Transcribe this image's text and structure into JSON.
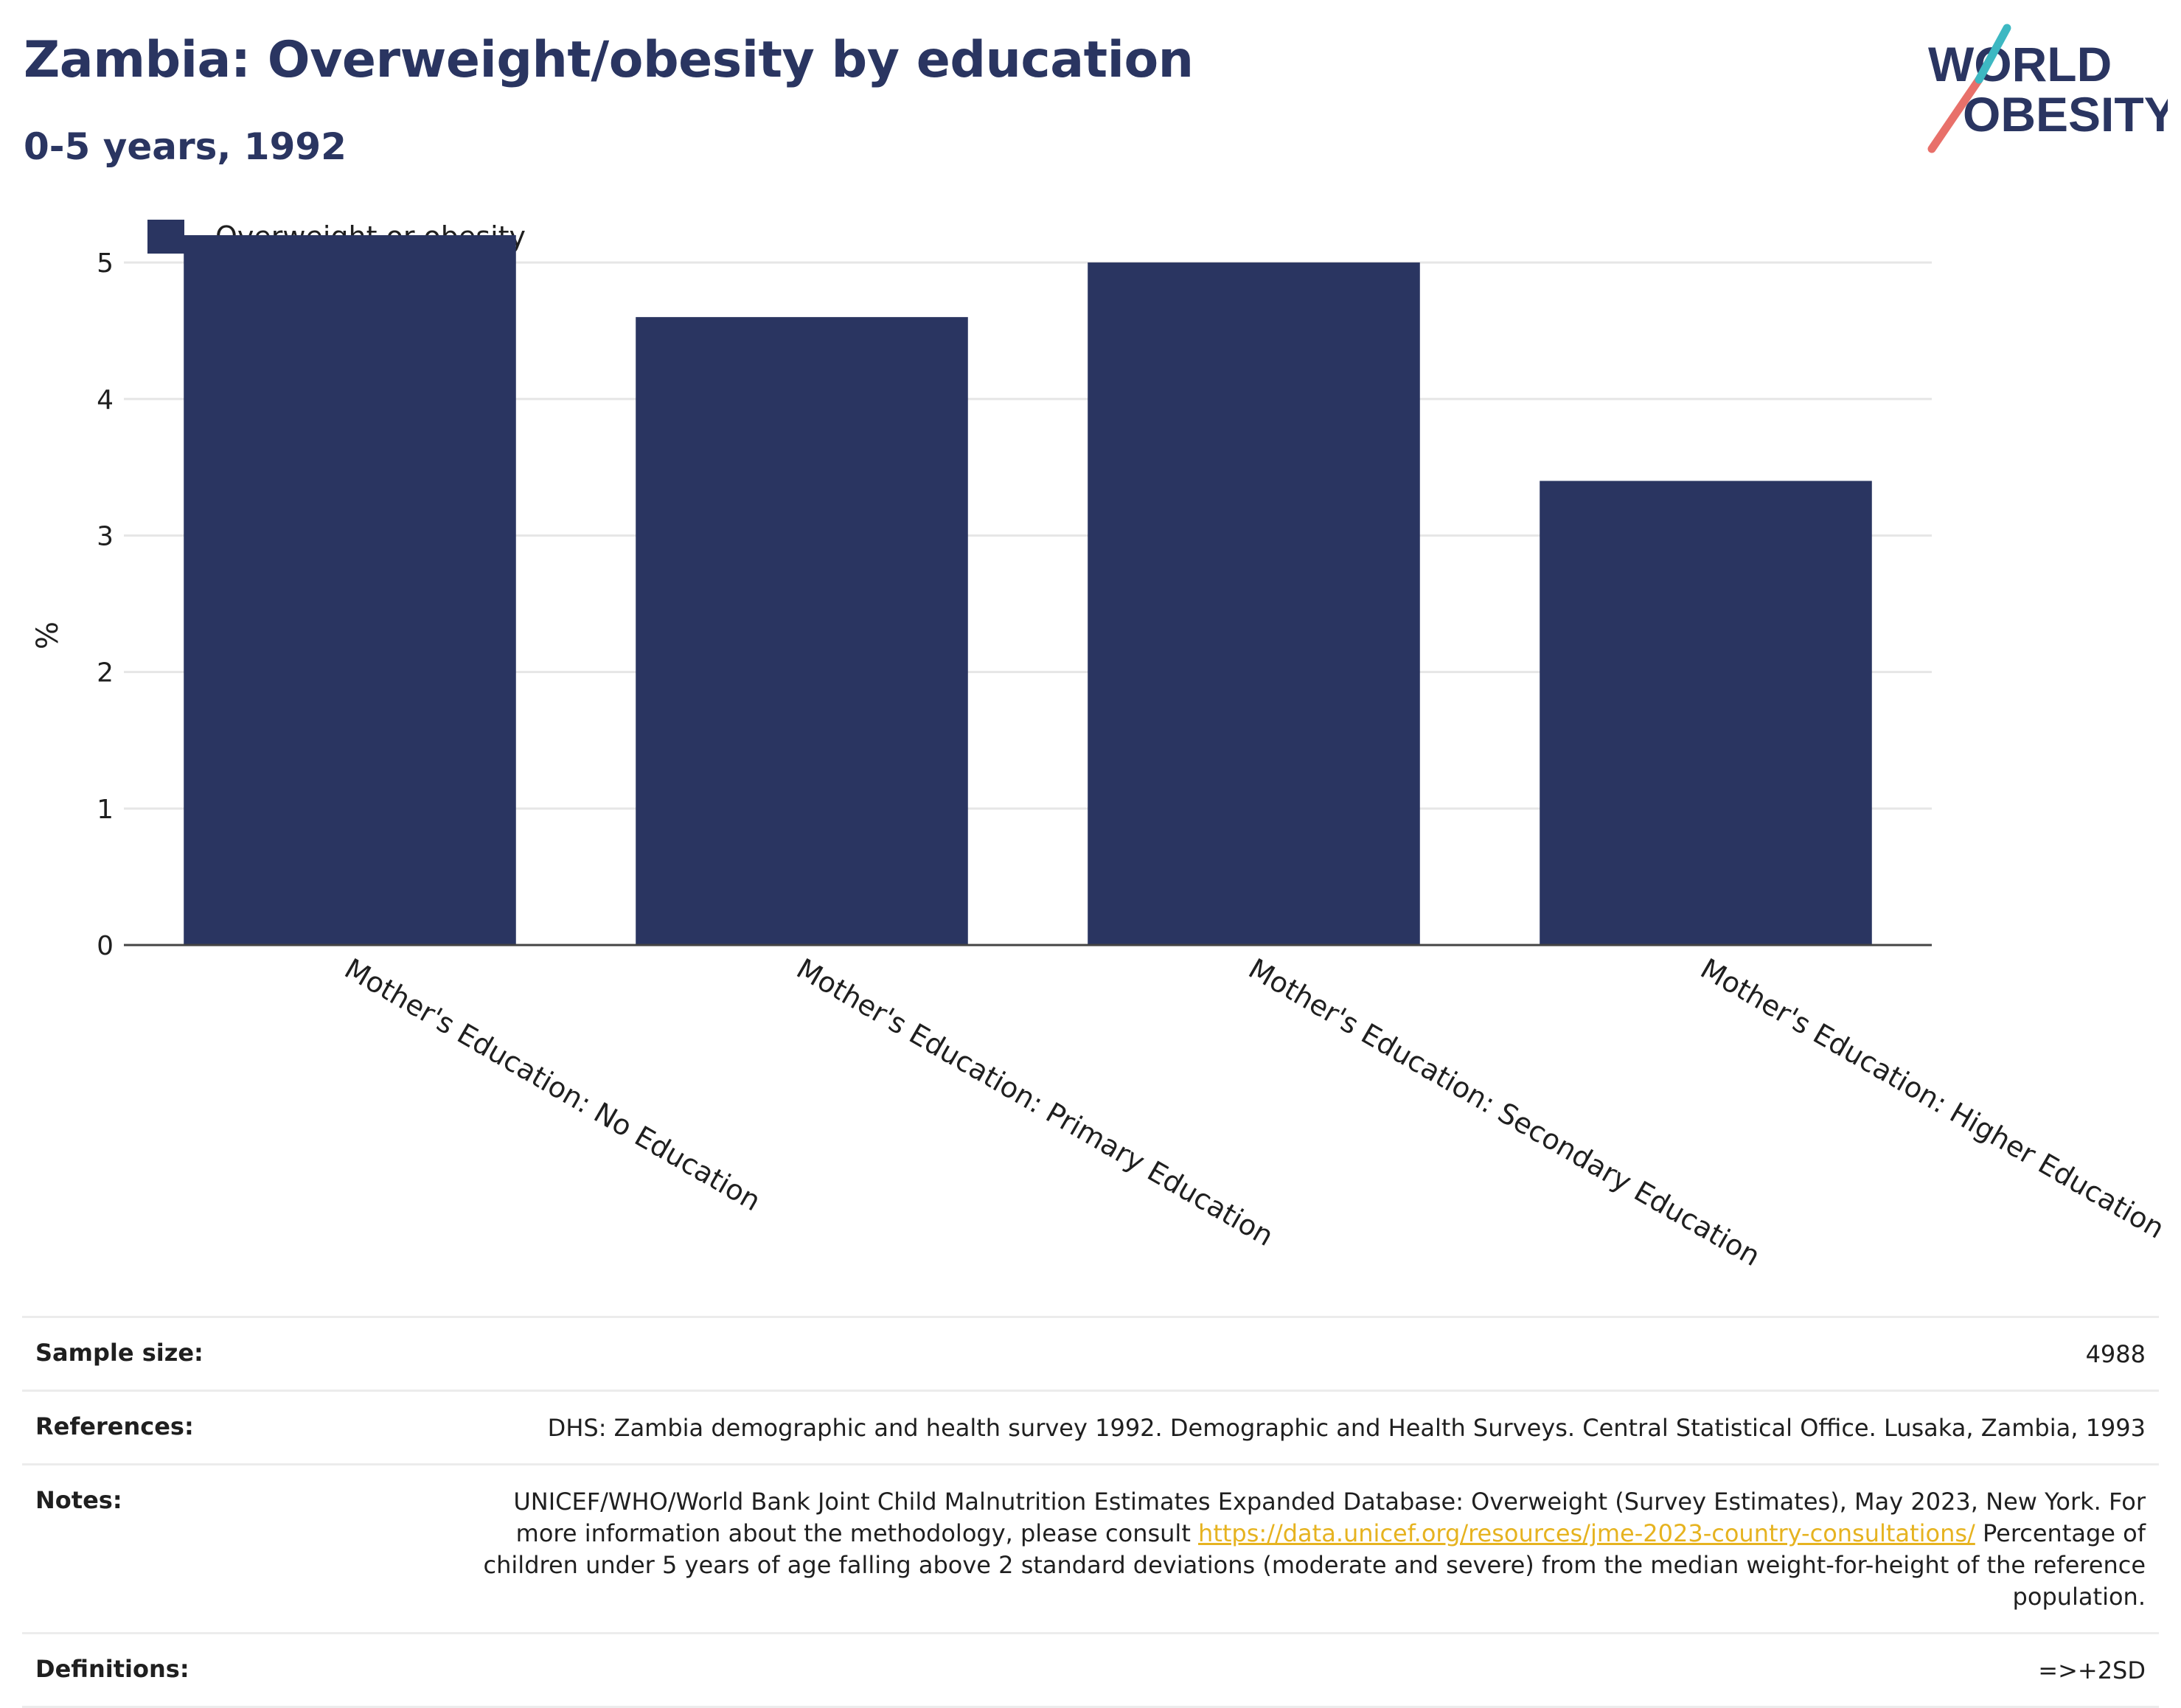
{
  "header": {
    "title": "Zambia: Overweight/obesity by education",
    "subtitle": "0-5 years, 1992"
  },
  "logo": {
    "line1": "WORLD",
    "line2": "OBESITY",
    "brand_color": "#2a3561",
    "accent_colors": [
      "#e8706a",
      "#3db8c2"
    ]
  },
  "legend": {
    "label": "Overweight or obesity",
    "color": "#2a3561"
  },
  "chart_data": {
    "type": "bar",
    "categories": [
      "Mother's Education: No Education",
      "Mother's Education: Primary Education",
      "Mother's Education: Secondary Education",
      "Mother's Education: Higher Education"
    ],
    "series": [
      {
        "name": "Overweight or obesity",
        "values": [
          5.2,
          4.6,
          5.0,
          3.4
        ],
        "color": "#2a3561"
      }
    ],
    "ylabel": "%",
    "ylim": [
      0,
      5.4
    ],
    "yticks": [
      0,
      1,
      2,
      3,
      4,
      5
    ],
    "grid": true,
    "legend_position": "top-left"
  },
  "metadata": {
    "sample_size": {
      "label": "Sample size:",
      "value": "4988"
    },
    "references": {
      "label": "References:",
      "value": "DHS: Zambia demographic and health survey 1992. Demographic and Health Surveys. Central Statistical Office. Lusaka, Zambia, 1993"
    },
    "notes": {
      "label": "Notes:",
      "text1": "UNICEF/WHO/World Bank Joint Child Malnutrition Estimates Expanded Database: Overweight (Survey Estimates), May 2023, New York. For more information about the methodology, please consult",
      "link": "https://data.unicef.org/resources/jme-2023-country-consultations/",
      "text2": "Percentage of children under 5 years of age falling above 2 standard deviations (moderate and severe) from the median weight-for-height of the reference population."
    },
    "definitions": {
      "label": "Definitions:",
      "value": "=>+2SD"
    }
  }
}
